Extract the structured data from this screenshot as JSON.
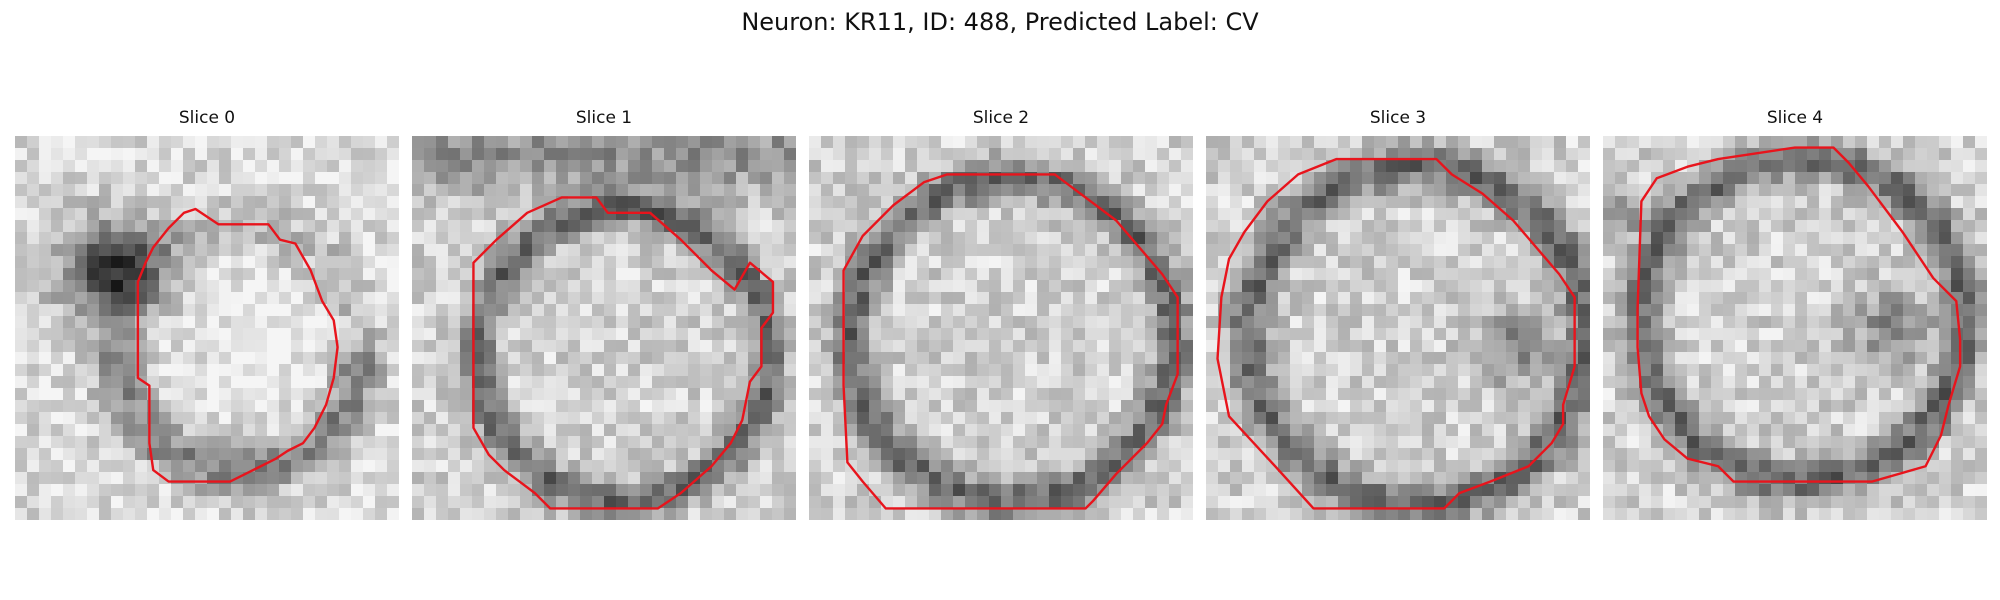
{
  "figure": {
    "title": "Neuron: KR11, ID: 488, Predicted Label: CV"
  },
  "slices": [
    {
      "label": "Slice 0"
    },
    {
      "label": "Slice 1"
    },
    {
      "label": "Slice 2"
    },
    {
      "label": "Slice 3"
    },
    {
      "label": "Slice 4"
    }
  ],
  "colors": {
    "contour": "#e8141c",
    "background": "#ffffff"
  }
}
